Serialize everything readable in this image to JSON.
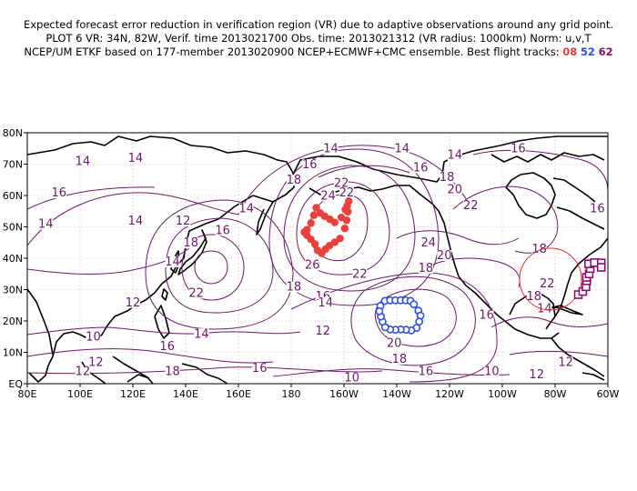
{
  "header": {
    "line1": "Expected forecast error reduction in verification region (VR) due to adaptive observations around any grid point.",
    "line2": "PLOT 6 VR: 34N, 82W, Verif. time 2013021700 Obs. time: 2013021312 (VR radius: 1000km) Norm: u,v,T",
    "line3_prefix": "NCEP/UM ETKF based on 177-member 2013020900 NCEP+ECMWF+CMC ensemble. Best flight tracks:",
    "track_a": "08",
    "track_b": "52",
    "track_c": "62"
  },
  "map": {
    "lon_range": [
      80,
      300
    ],
    "lat_range": [
      0,
      80
    ],
    "x_ticks": [
      "80E",
      "100E",
      "120E",
      "140E",
      "160E",
      "180",
      "160W",
      "140W",
      "120W",
      "100W",
      "80W",
      "60W"
    ],
    "y_ticks": [
      "EQ",
      "10N",
      "20N",
      "30N",
      "40N",
      "50N",
      "60N",
      "70N",
      "80N"
    ],
    "grid": true,
    "colors": {
      "contour": "#6a1a6a",
      "track_08": "#e8413c",
      "track_52": "#3050e0",
      "track_62": "#8a1070",
      "vr_circle": "#e03030"
    },
    "verification_region": {
      "lat": 34,
      "lon": -82,
      "radius_km": 1000
    },
    "contour_labels": [
      {
        "v": "14",
        "lon": 121,
        "lat": 71
      },
      {
        "v": "14",
        "lon": 101,
        "lat": 70
      },
      {
        "v": "16",
        "lon": 92,
        "lat": 60
      },
      {
        "v": "14",
        "lon": 87,
        "lat": 50
      },
      {
        "v": "14",
        "lon": 121,
        "lat": 51
      },
      {
        "v": "12",
        "lon": 139,
        "lat": 51
      },
      {
        "v": "18",
        "lon": 142,
        "lat": 44
      },
      {
        "v": "16",
        "lon": 154,
        "lat": 48
      },
      {
        "v": "14",
        "lon": 163,
        "lat": 55
      },
      {
        "v": "14",
        "lon": 195,
        "lat": 74
      },
      {
        "v": "16",
        "lon": 187,
        "lat": 69
      },
      {
        "v": "18",
        "lon": 181,
        "lat": 64
      },
      {
        "v": "22",
        "lon": 199,
        "lat": 63
      },
      {
        "v": "22",
        "lon": 201,
        "lat": 60
      },
      {
        "v": "24",
        "lon": 194,
        "lat": 59
      },
      {
        "v": "26",
        "lon": 188,
        "lat": 37
      },
      {
        "v": "22",
        "lon": 206,
        "lat": 34
      },
      {
        "v": "18",
        "lon": 181,
        "lat": 30
      },
      {
        "v": "16",
        "lon": 192,
        "lat": 27
      },
      {
        "v": "14",
        "lon": 193,
        "lat": 25
      },
      {
        "v": "12",
        "lon": 192,
        "lat": 16
      },
      {
        "v": "14",
        "lon": 135,
        "lat": 38
      },
      {
        "v": "12",
        "lon": 120,
        "lat": 25
      },
      {
        "v": "22",
        "lon": 144,
        "lat": 28
      },
      {
        "v": "10",
        "lon": 105,
        "lat": 14
      },
      {
        "v": "12",
        "lon": 106,
        "lat": 6
      },
      {
        "v": "12",
        "lon": 101,
        "lat": 3
      },
      {
        "v": "14",
        "lon": 146,
        "lat": 15
      },
      {
        "v": "16",
        "lon": 133,
        "lat": 11
      },
      {
        "v": "18",
        "lon": 135,
        "lat": 3
      },
      {
        "v": "16",
        "lon": 168,
        "lat": 4
      },
      {
        "v": "10",
        "lon": 203,
        "lat": 1
      },
      {
        "v": "20",
        "lon": 219,
        "lat": 12
      },
      {
        "v": "18",
        "lon": 221,
        "lat": 7
      },
      {
        "v": "16",
        "lon": 231,
        "lat": 3
      },
      {
        "v": "24",
        "lon": 232,
        "lat": 44
      },
      {
        "v": "20",
        "lon": 238,
        "lat": 40
      },
      {
        "v": "18",
        "lon": 231,
        "lat": 36
      },
      {
        "v": "14",
        "lon": 222,
        "lat": 74
      },
      {
        "v": "16",
        "lon": 229,
        "lat": 68
      },
      {
        "v": "18",
        "lon": 239,
        "lat": 65
      },
      {
        "v": "20",
        "lon": 242,
        "lat": 61
      },
      {
        "v": "22",
        "lon": 248,
        "lat": 56
      },
      {
        "v": "16",
        "lon": 254,
        "lat": 21
      },
      {
        "v": "14",
        "lon": 276,
        "lat": 23
      },
      {
        "v": "12",
        "lon": 284,
        "lat": 6
      },
      {
        "v": "10",
        "lon": 256,
        "lat": 3
      },
      {
        "v": "12",
        "lon": 273,
        "lat": 2
      },
      {
        "v": "18",
        "lon": 274,
        "lat": 42
      },
      {
        "v": "16",
        "lon": 296,
        "lat": 55
      },
      {
        "v": "18",
        "lon": 272,
        "lat": 27
      },
      {
        "v": "22",
        "lon": 277,
        "lat": 31
      },
      {
        "v": "14",
        "lon": 242,
        "lat": 72
      },
      {
        "v": "16",
        "lon": 266,
        "lat": 74
      }
    ],
    "track_08_points": [
      [
        189.5,
        56.1
      ],
      [
        191,
        54.4
      ],
      [
        192.7,
        53.4
      ],
      [
        194.7,
        52.4
      ],
      [
        196.5,
        51.4
      ],
      [
        199,
        53.0
      ],
      [
        200.5,
        55.5
      ],
      [
        201.2,
        56.7
      ],
      [
        201.8,
        58.2
      ],
      [
        201.5,
        54.8
      ],
      [
        201,
        52.1
      ],
      [
        200.3,
        49.5
      ],
      [
        198.5,
        46.3
      ],
      [
        196.5,
        45.1
      ],
      [
        194.5,
        44.0
      ],
      [
        193,
        42.9
      ],
      [
        191.5,
        41.6
      ],
      [
        190,
        42.5
      ],
      [
        189,
        44.5
      ],
      [
        187.5,
        46.0
      ],
      [
        186,
        47.3
      ],
      [
        185,
        48.3
      ],
      [
        186,
        49.1
      ],
      [
        187.5,
        51.2
      ],
      [
        188.6,
        53.7
      ]
    ],
    "track_52_points": [
      [
        213.8,
        24.8
      ],
      [
        215.5,
        26.4
      ],
      [
        217.5,
        26.6
      ],
      [
        219.5,
        26.6
      ],
      [
        221.5,
        26.6
      ],
      [
        223.4,
        26.6
      ],
      [
        225.2,
        26.4
      ],
      [
        226.5,
        25.3
      ],
      [
        228.2,
        23.3
      ],
      [
        229,
        21.7
      ],
      [
        228.5,
        19.8
      ],
      [
        227.5,
        17.8
      ],
      [
        225.5,
        17.0
      ],
      [
        223.5,
        17.2
      ],
      [
        221.5,
        17.3
      ],
      [
        219.5,
        17.2
      ],
      [
        217.5,
        17.3
      ],
      [
        215.6,
        18.0
      ],
      [
        214.6,
        19.8
      ],
      [
        214,
        21.4
      ],
      [
        213.4,
        23.1
      ]
    ],
    "track_62_points": [
      [
        288.8,
        28.4
      ],
      [
        290.5,
        29.4
      ],
      [
        291.7,
        30.9
      ],
      [
        292,
        32.8
      ],
      [
        291.9,
        33.9
      ],
      [
        292.9,
        35.0
      ],
      [
        293.3,
        36.7
      ],
      [
        292.7,
        38.2
      ],
      [
        294.9,
        38.6
      ],
      [
        297.5,
        38.5
      ],
      [
        297.5,
        37.1
      ]
    ]
  }
}
